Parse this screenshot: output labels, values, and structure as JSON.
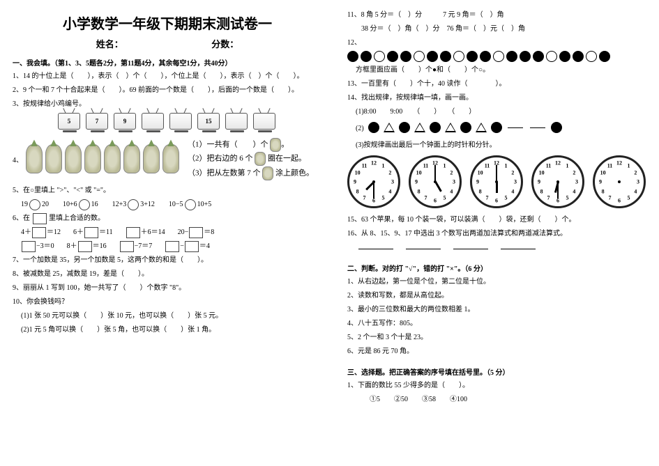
{
  "title": "小学数学一年级下期期末测试卷一",
  "name_label": "姓名：",
  "score_label": "分数：",
  "sec1_head": "一、我会填。（第1、3、5题各2分，第11题4分，其余每空1分，共40分）",
  "q1": "1、14 的十位上是（　　），表示（　）个（　　），个位上是（　　），表示（　）个（　　）。",
  "q2": "2、9 个一和 7 个十合起来是（　　）。69 前面的一个数是（　　），后面的一个数是（　　）。",
  "q3": "3、按规律给小鸡编号。",
  "tv_numbers": [
    "5",
    "7",
    "9",
    "",
    "",
    "15",
    "",
    ""
  ],
  "q4_prefix": "4、",
  "q4_1": "（1）一共有（　　）个",
  "q4_2": "（2）把右边的 6 个",
  "q4_2b": "圈在一起。",
  "q4_3": "（3）把从左数第 7 个",
  "q4_3b": "涂上颜色。",
  "q5": "5、在○里填上 \">\"、\"<\" 或 \"=\"。",
  "q5_items": [
    "19○20",
    "10+6○16",
    "12+3○3+12",
    "10−5○10+5"
  ],
  "q6": "6、在　　里填上合适的数。",
  "q6_row1": [
    "4＋□＝12",
    "6＋□＝11",
    "□＋6＝14",
    "20−□＝8"
  ],
  "q6_row2": [
    "□−3＝0",
    "8＋□＝16",
    "□−7＝7",
    "□−□＝4"
  ],
  "q7": "7、一个加数是 35，另一个加数是 5，这两个数的和是（　　）。",
  "q8": "8、被减数是 25，减数是 19，差是（　　）。",
  "q9": "9、丽丽从 1 写到 100，她一共写了（　　）个数字 \"8\"。",
  "q10": "10、你会换钱吗？",
  "q10_1": "(1)1 张 50 元可以换（　　）张 10 元，也可以换（　　）张 5 元。",
  "q10_2": "(2)1 元 5 角可以换（　　）张 5 角，也可以换（　　）张 1 角。",
  "q11_1": "11、8 角 5 分＝（　）分　　　7 元 9 角＝（　）角",
  "q11_2": "　　38 分＝（　）角（　）分　76 角＝（　）元（　）角",
  "q12_label": "12、",
  "q12_pattern": [
    1,
    1,
    0,
    1,
    1,
    0,
    1,
    1,
    0,
    1,
    1,
    0,
    1,
    1,
    1,
    0,
    1,
    1,
    0,
    1
  ],
  "q12_hint": "方框里面应画（　　）个●和（　　）个○。",
  "q13": "13、一百里有（　　）个十，40 读作（　　　　）。",
  "q14": "14、找出规律，按规律填一填，画一画。",
  "q14_1_label": "(1)8:00　　9:00　　（　　）　　（　　）",
  "q14_2_label": "(2)",
  "q14_2_pattern": [
    "f",
    "t",
    "f",
    "t",
    "f",
    "t",
    "f",
    "t",
    "f",
    "",
    "",
    "f"
  ],
  "q14_3": "(3)按规律画出最后一个钟面上的时针和分针。",
  "clocks": [
    {
      "hour": 7,
      "min": 30
    },
    {
      "hour": 5,
      "min": 0
    },
    {
      "hour": 6,
      "min": 0
    },
    {
      "hour": 6,
      "min": 30
    },
    {
      "hour": null,
      "min": null
    }
  ],
  "q15": "15、63 个苹果，每 10 个装一袋，可以装满（　　）袋，还剩（　　）个。",
  "q16": "16、从 8、15、9、17 中选出 3 个数写出两道加法算式和两道减法算式。",
  "sec2_head": "二、判断。对的打 \"√\"，错的打 \"×\"。（6 分）",
  "s2_1": "1、从右边起，第一位是个位，第二位是十位。",
  "s2_2": "2、读数和写数，都是从高位起。",
  "s2_3": "3、最小的三位数和最大的两位数相差 1。",
  "s2_4": "4、八十五写作：805。",
  "s2_5": "5、2 个一和 3 个十是 23。",
  "s2_6": "6、元是 86 元 70 角。",
  "sec3_head": "三、选择题。把正确答案的序号填在括号里。（5 分）",
  "s3_1": "1、下面的数比 55 少得多的是（　　）。",
  "s3_1_opts": "　　①5　　②50　　③58　　④100"
}
